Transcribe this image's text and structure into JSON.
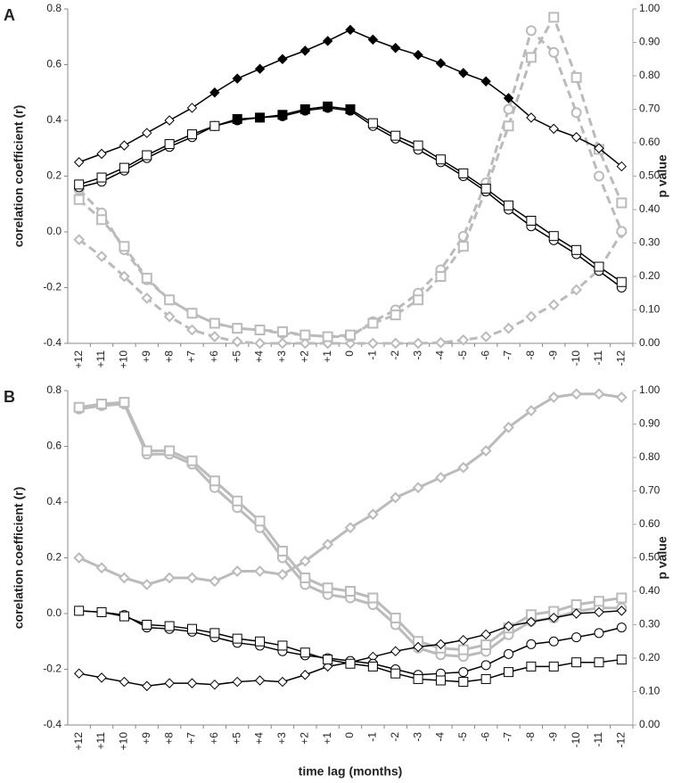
{
  "chart_data": [
    {
      "type": "line",
      "label": "A",
      "y_label": "corelation coefficient (r)",
      "y2_label": "p value",
      "categories": [
        "+12",
        "+11",
        "+10",
        "+9",
        "+8",
        "+7",
        "+6",
        "+5",
        "+4",
        "+3",
        "+2",
        "+1",
        "0",
        "-1",
        "-2",
        "-3",
        "-4",
        "-5",
        "-6",
        "-7",
        "-8",
        "-9",
        "-10",
        "-11",
        "-12"
      ],
      "ylim": [
        -0.4,
        0.8
      ],
      "yticks": [
        -0.4,
        -0.2,
        {
          "value": 0,
          "label": "0.0"
        },
        0.2,
        0.4,
        0.6,
        0.8
      ],
      "y2lim": [
        0,
        1
      ],
      "y2ticks": [
        {
          "value": 0,
          "label": "0.00"
        },
        {
          "value": 0.1,
          "label": "0.10"
        },
        {
          "value": 0.2,
          "label": "0.20"
        },
        {
          "value": 0.3,
          "label": "0.30"
        },
        {
          "value": 0.4,
          "label": "0.40"
        },
        {
          "value": 0.5,
          "label": "0.50"
        },
        {
          "value": 0.6,
          "label": "0.60"
        },
        {
          "value": 0.7,
          "label": "0.70"
        },
        {
          "value": 0.8,
          "label": "0.80"
        },
        {
          "value": 0.9,
          "label": "0.90"
        },
        {
          "value": 1,
          "label": "1.00"
        }
      ],
      "series": [
        {
          "color": "#bbbbbb",
          "marker": "diamond",
          "dash": true,
          "axis": "y2",
          "values": [
            0.31,
            0.26,
            0.2,
            0.135,
            0.08,
            0.04,
            0.02,
            0.005,
            0,
            0,
            0,
            0,
            0,
            0,
            0,
            0,
            0.002,
            0.01,
            0.02,
            0.045,
            0.08,
            0.115,
            0.16,
            0.22,
            0.33
          ]
        },
        {
          "color": "#bbbbbb",
          "marker": "circle",
          "dash": true,
          "axis": "y2",
          "values": [
            0.46,
            0.39,
            0.28,
            0.19,
            0.13,
            0.09,
            0.06,
            0.045,
            0.04,
            0.03,
            0.025,
            0.02,
            0.02,
            0.065,
            0.1,
            0.15,
            0.22,
            0.32,
            0.48,
            0.7,
            0.935,
            0.87,
            0.69,
            0.5,
            0.335
          ]
        },
        {
          "color": "#bbbbbb",
          "marker": "square",
          "dash": true,
          "axis": "y2",
          "values": [
            0.43,
            0.37,
            0.29,
            0.195,
            0.13,
            0.09,
            0.06,
            0.045,
            0.04,
            0.035,
            0.025,
            0.02,
            0.025,
            0.06,
            0.085,
            0.13,
            0.2,
            0.29,
            0.46,
            0.65,
            0.855,
            0.975,
            0.795,
            0.58,
            0.42
          ]
        },
        {
          "color": "#000000",
          "marker": "diamond",
          "dash": false,
          "axis": "y",
          "filled": [
            false,
            false,
            false,
            false,
            false,
            false,
            true,
            true,
            true,
            true,
            true,
            true,
            true,
            true,
            true,
            true,
            true,
            true,
            true,
            true,
            false,
            false,
            false,
            false,
            false
          ],
          "values": [
            0.25,
            0.28,
            0.31,
            0.355,
            0.4,
            0.445,
            0.5,
            0.55,
            0.585,
            0.62,
            0.65,
            0.685,
            0.725,
            0.69,
            0.66,
            0.635,
            0.605,
            0.57,
            0.54,
            0.48,
            0.41,
            0.37,
            0.34,
            0.3,
            0.235
          ]
        },
        {
          "color": "#000000",
          "marker": "circle",
          "dash": false,
          "axis": "y",
          "filled": [
            false,
            false,
            false,
            false,
            false,
            false,
            false,
            true,
            true,
            true,
            true,
            true,
            true,
            false,
            false,
            false,
            false,
            false,
            false,
            false,
            false,
            false,
            false,
            false,
            false
          ],
          "values": [
            0.16,
            0.18,
            0.22,
            0.265,
            0.305,
            0.34,
            0.38,
            0.4,
            0.41,
            0.415,
            0.435,
            0.445,
            0.435,
            0.38,
            0.335,
            0.295,
            0.25,
            0.2,
            0.145,
            0.08,
            0.02,
            -0.03,
            -0.08,
            -0.14,
            -0.2
          ]
        },
        {
          "color": "#000000",
          "marker": "square",
          "dash": false,
          "axis": "y",
          "filled": [
            false,
            false,
            false,
            false,
            false,
            false,
            false,
            true,
            true,
            true,
            true,
            true,
            true,
            false,
            false,
            false,
            false,
            false,
            false,
            false,
            false,
            false,
            false,
            false,
            false
          ],
          "values": [
            0.17,
            0.195,
            0.23,
            0.275,
            0.315,
            0.35,
            0.38,
            0.405,
            0.41,
            0.42,
            0.44,
            0.45,
            0.44,
            0.39,
            0.345,
            0.31,
            0.26,
            0.21,
            0.155,
            0.095,
            0.04,
            -0.015,
            -0.065,
            -0.125,
            -0.18
          ]
        }
      ]
    },
    {
      "type": "line",
      "label": "B",
      "y_label": "corelation coefficient (r)",
      "y2_label": "p value",
      "x_label": "time lag (months)",
      "categories": [
        "+12",
        "+11",
        "+10",
        "+9",
        "+8",
        "+7",
        "+6",
        "+5",
        "+4",
        "+3",
        "+2",
        "+1",
        "0",
        "-1",
        "-2",
        "-3",
        "-4",
        "-5",
        "-6",
        "-7",
        "-8",
        "-9",
        "-10",
        "-11",
        "-12"
      ],
      "ylim": [
        -0.4,
        0.8
      ],
      "yticks": [
        -0.4,
        -0.2,
        {
          "value": 0,
          "label": "0.0"
        },
        0.2,
        0.4,
        0.6,
        0.8
      ],
      "y2lim": [
        0,
        1
      ],
      "y2ticks": [
        {
          "value": 0,
          "label": "0.00"
        },
        {
          "value": 0.1,
          "label": "0.10"
        },
        {
          "value": 0.2,
          "label": "0.20"
        },
        {
          "value": 0.3,
          "label": "0.30"
        },
        {
          "value": 0.4,
          "label": "0.40"
        },
        {
          "value": 0.5,
          "label": "0.50"
        },
        {
          "value": 0.6,
          "label": "0.60"
        },
        {
          "value": 0.7,
          "label": "0.70"
        },
        {
          "value": 0.8,
          "label": "0.80"
        },
        {
          "value": 0.9,
          "label": "0.90"
        },
        {
          "value": 1,
          "label": "1.00"
        }
      ],
      "series": [
        {
          "color": "#bbbbbb",
          "marker": "diamond",
          "dash": false,
          "axis": "y2",
          "values": [
            0.5,
            0.47,
            0.44,
            0.42,
            0.44,
            0.44,
            0.43,
            0.46,
            0.46,
            0.45,
            0.49,
            0.54,
            0.59,
            0.63,
            0.68,
            0.71,
            0.74,
            0.77,
            0.82,
            0.89,
            0.94,
            0.98,
            0.99,
            0.99,
            0.98
          ]
        },
        {
          "color": "#bbbbbb",
          "marker": "circle",
          "dash": false,
          "axis": "y2",
          "values": [
            0.945,
            0.955,
            0.96,
            0.81,
            0.81,
            0.78,
            0.71,
            0.65,
            0.59,
            0.5,
            0.42,
            0.39,
            0.38,
            0.36,
            0.3,
            0.23,
            0.21,
            0.205,
            0.22,
            0.27,
            0.31,
            0.32,
            0.34,
            0.35,
            0.35
          ]
        },
        {
          "color": "#bbbbbb",
          "marker": "square",
          "dash": false,
          "axis": "y2",
          "values": [
            0.95,
            0.96,
            0.965,
            0.82,
            0.82,
            0.79,
            0.73,
            0.67,
            0.61,
            0.52,
            0.44,
            0.41,
            0.4,
            0.38,
            0.32,
            0.25,
            0.23,
            0.225,
            0.24,
            0.29,
            0.33,
            0.34,
            0.36,
            0.37,
            0.38
          ]
        },
        {
          "color": "#000000",
          "marker": "diamond",
          "dash": false,
          "axis": "y",
          "values": [
            -0.215,
            -0.23,
            -0.245,
            -0.26,
            -0.25,
            -0.25,
            -0.255,
            -0.245,
            -0.24,
            -0.245,
            -0.22,
            -0.19,
            -0.175,
            -0.155,
            -0.135,
            -0.12,
            -0.11,
            -0.095,
            -0.075,
            -0.045,
            -0.03,
            -0.015,
            0,
            0.005,
            0.01
          ]
        },
        {
          "color": "#000000",
          "marker": "circle",
          "dash": false,
          "axis": "y",
          "values": [
            0.01,
            0.005,
            -0.005,
            -0.05,
            -0.055,
            -0.065,
            -0.085,
            -0.105,
            -0.115,
            -0.135,
            -0.15,
            -0.16,
            -0.17,
            -0.18,
            -0.2,
            -0.22,
            -0.215,
            -0.21,
            -0.185,
            -0.145,
            -0.11,
            -0.1,
            -0.085,
            -0.07,
            -0.05
          ]
        },
        {
          "color": "#000000",
          "marker": "square",
          "dash": false,
          "axis": "y",
          "values": [
            0.01,
            0.005,
            -0.01,
            -0.04,
            -0.045,
            -0.055,
            -0.07,
            -0.09,
            -0.1,
            -0.115,
            -0.14,
            -0.165,
            -0.18,
            -0.19,
            -0.215,
            -0.235,
            -0.24,
            -0.245,
            -0.235,
            -0.21,
            -0.19,
            -0.19,
            -0.175,
            -0.175,
            -0.165
          ]
        }
      ]
    }
  ]
}
